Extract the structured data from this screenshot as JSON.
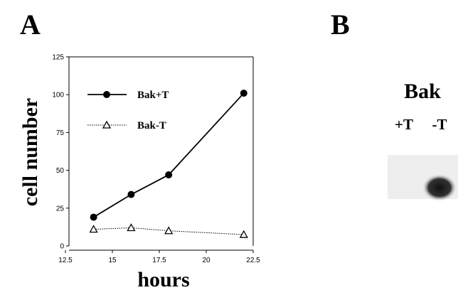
{
  "panel_labels": [
    "A",
    "B"
  ],
  "chart_data": {
    "type": "line",
    "xlabel": "hours",
    "ylabel": "cell number",
    "xlim": [
      12.5,
      22.5
    ],
    "xticks": [
      12.5,
      15,
      17.5,
      20,
      22.5
    ],
    "ylim": [
      0,
      125
    ],
    "yticks": [
      0,
      25,
      50,
      75,
      100,
      125
    ],
    "x": [
      14,
      16,
      18,
      22
    ],
    "legend": "upper left",
    "series": [
      {
        "name": "Bak+T",
        "color": "#000000",
        "marker": "circle",
        "linestyle": "solid",
        "values": [
          19,
          34,
          47,
          101
        ]
      },
      {
        "name": "Bak-T",
        "color": "#000000",
        "marker": "triangle",
        "linestyle": "dotted",
        "values": [
          11,
          12,
          10,
          7.5
        ]
      }
    ]
  },
  "blot": {
    "title": "Bak",
    "lanes": [
      "+T",
      "-T"
    ]
  }
}
